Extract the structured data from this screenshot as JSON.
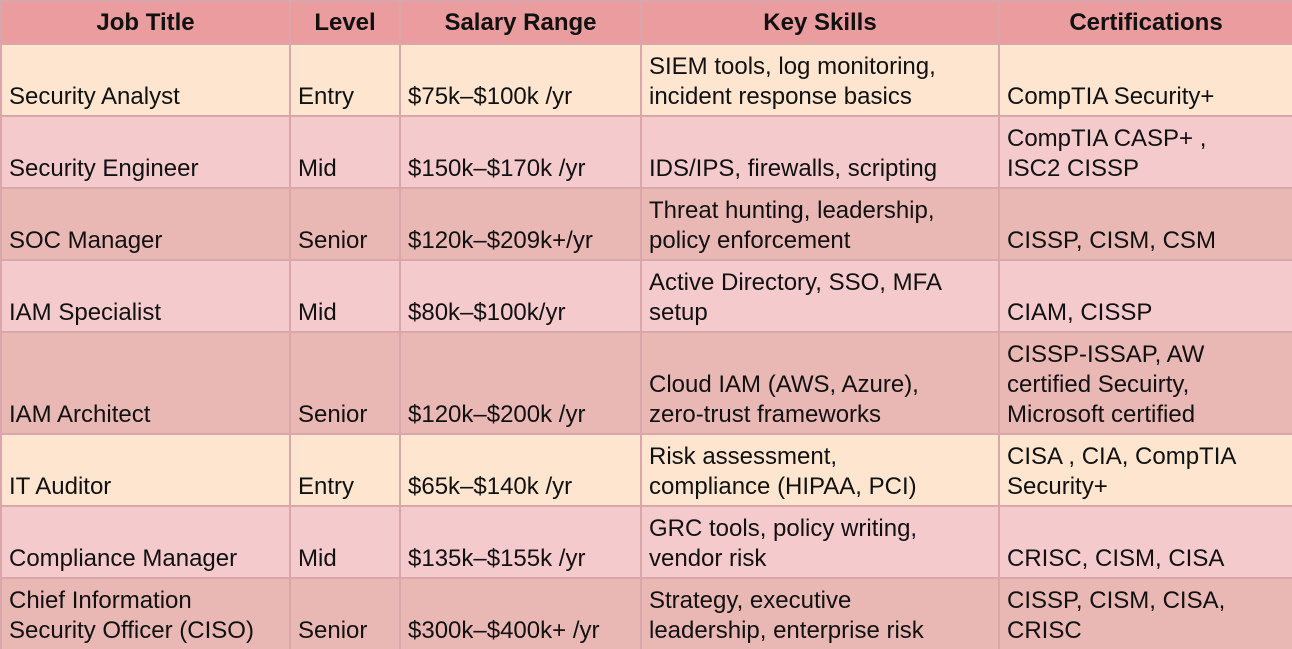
{
  "headers": [
    "Job Title",
    "Level",
    "Salary Range",
    "Key Skills",
    "Certifications"
  ],
  "rows": [
    {
      "title": "Security Analyst",
      "level": "Entry",
      "salary": "$75k–$100k /yr",
      "skills": "SIEM tools, log monitoring,\nincident response basics",
      "certs": "CompTIA Security+"
    },
    {
      "title": "Security Engineer",
      "level": "Mid",
      "salary": "$150k–$170k /yr",
      "skills": "IDS/IPS, firewalls, scripting",
      "certs": "CompTIA CASP+ ,\nISC2 CISSP"
    },
    {
      "title": "SOC Manager",
      "level": "Senior",
      "salary": "$120k–$209k+/yr",
      "skills": "Threat hunting, leadership,\npolicy enforcement",
      "certs": "CISSP, CISM, CSM"
    },
    {
      "title": "IAM Specialist",
      "level": "Mid",
      "salary": "$80k–$100k/yr",
      "skills": "Active Directory, SSO, MFA\nsetup",
      "certs": "CIAM, CISSP"
    },
    {
      "title": "IAM Architect",
      "level": "Senior",
      "salary": "$120k–$200k /yr",
      "skills": "Cloud IAM (AWS, Azure),\nzero-trust frameworks",
      "certs": "CISSP-ISSAP, AW\ncertified Secuirty,\nMicrosoft certified"
    },
    {
      "title": "IT Auditor",
      "level": "Entry",
      "salary": "$65k–$140k /yr",
      "skills": "Risk assessment,\ncompliance (HIPAA, PCI)",
      "certs": "CISA , CIA, CompTIA\nSecurity+"
    },
    {
      "title": "Compliance Manager",
      "level": "Mid",
      "salary": "$135k–$155k /yr",
      "skills": "GRC tools, policy writing,\nvendor risk",
      "certs": "CRISC, CISM, CISA"
    },
    {
      "title": "Chief Information\nSecurity Officer (CISO)",
      "level": "Senior",
      "salary": "$300k–$400k+ /yr",
      "skills": "Strategy, executive\nleadership, enterprise risk",
      "certs": "CISSP, CISM, CISA,\nCRISC"
    }
  ],
  "colors": {
    "header_bg": "#eb9c9f",
    "row_peach": "#fde5cf",
    "row_pink": "#f5cacd",
    "row_rose": "#e9b8b5",
    "border": "#d9a7a9"
  }
}
